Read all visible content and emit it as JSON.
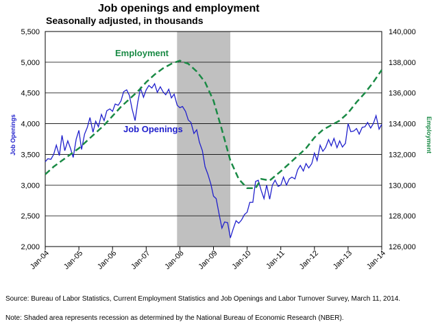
{
  "chart_data": {
    "type": "line",
    "title": "Job openings and employment",
    "subtitle": "Seasonally adjusted, in thousands",
    "xlabel": "",
    "x_ticks": [
      "Jan-04",
      "Jan-05",
      "Jan-06",
      "Jan-07",
      "Jan-08",
      "Jan-09",
      "Jan-10",
      "Jan-11",
      "Jan-12",
      "Jan-13",
      "Jan-14"
    ],
    "y_left": {
      "label": "Job Openings",
      "range": [
        2000,
        5500
      ],
      "ticks": [
        "2,000",
        "2,500",
        "3,000",
        "3,500",
        "4,000",
        "4,500",
        "5,000",
        "5,500"
      ]
    },
    "y_right": {
      "label": "Employment",
      "range": [
        126000,
        140000
      ],
      "ticks": [
        "126,000",
        "128,000",
        "130,000",
        "132,000",
        "134,000",
        "136,000",
        "138,000",
        "140,000"
      ]
    },
    "grid": true,
    "recession": {
      "start": 2007.917,
      "end": 2009.5,
      "color": "#c0c0c0"
    },
    "series": [
      {
        "name": "Job Openings",
        "axis": "left",
        "color": "#1f1fcc",
        "style": "solid",
        "points": [
          [
            2004.0,
            3380
          ],
          [
            2004.08,
            3430
          ],
          [
            2004.17,
            3420
          ],
          [
            2004.25,
            3500
          ],
          [
            2004.33,
            3650
          ],
          [
            2004.42,
            3480
          ],
          [
            2004.5,
            3810
          ],
          [
            2004.58,
            3560
          ],
          [
            2004.67,
            3720
          ],
          [
            2004.75,
            3600
          ],
          [
            2004.83,
            3450
          ],
          [
            2004.92,
            3750
          ],
          [
            2005.0,
            3890
          ],
          [
            2005.08,
            3580
          ],
          [
            2005.17,
            3830
          ],
          [
            2005.25,
            3940
          ],
          [
            2005.33,
            4100
          ],
          [
            2005.42,
            3860
          ],
          [
            2005.5,
            4040
          ],
          [
            2005.58,
            3950
          ],
          [
            2005.67,
            4150
          ],
          [
            2005.75,
            4050
          ],
          [
            2005.83,
            4210
          ],
          [
            2005.92,
            4240
          ],
          [
            2006.0,
            4200
          ],
          [
            2006.08,
            4320
          ],
          [
            2006.17,
            4300
          ],
          [
            2006.25,
            4370
          ],
          [
            2006.33,
            4520
          ],
          [
            2006.42,
            4550
          ],
          [
            2006.5,
            4460
          ],
          [
            2006.58,
            4240
          ],
          [
            2006.67,
            4050
          ],
          [
            2006.75,
            4350
          ],
          [
            2006.83,
            4580
          ],
          [
            2006.92,
            4430
          ],
          [
            2007.0,
            4550
          ],
          [
            2007.08,
            4620
          ],
          [
            2007.17,
            4580
          ],
          [
            2007.25,
            4650
          ],
          [
            2007.33,
            4510
          ],
          [
            2007.42,
            4600
          ],
          [
            2007.5,
            4520
          ],
          [
            2007.58,
            4470
          ],
          [
            2007.67,
            4560
          ],
          [
            2007.75,
            4420
          ],
          [
            2007.83,
            4480
          ],
          [
            2007.92,
            4300
          ],
          [
            2008.0,
            4260
          ],
          [
            2008.08,
            4280
          ],
          [
            2008.17,
            4200
          ],
          [
            2008.25,
            4060
          ],
          [
            2008.33,
            4020
          ],
          [
            2008.42,
            3840
          ],
          [
            2008.5,
            3900
          ],
          [
            2008.58,
            3700
          ],
          [
            2008.67,
            3560
          ],
          [
            2008.75,
            3300
          ],
          [
            2008.83,
            3180
          ],
          [
            2008.92,
            3020
          ],
          [
            2009.0,
            2820
          ],
          [
            2009.08,
            2780
          ],
          [
            2009.17,
            2520
          ],
          [
            2009.25,
            2300
          ],
          [
            2009.33,
            2400
          ],
          [
            2009.42,
            2390
          ],
          [
            2009.5,
            2140
          ],
          [
            2009.58,
            2280
          ],
          [
            2009.67,
            2420
          ],
          [
            2009.75,
            2380
          ],
          [
            2009.83,
            2430
          ],
          [
            2009.92,
            2520
          ],
          [
            2010.0,
            2560
          ],
          [
            2010.08,
            2720
          ],
          [
            2010.17,
            2720
          ],
          [
            2010.25,
            3060
          ],
          [
            2010.33,
            3080
          ],
          [
            2010.42,
            2910
          ],
          [
            2010.5,
            2780
          ],
          [
            2010.58,
            3000
          ],
          [
            2010.67,
            2770
          ],
          [
            2010.75,
            3000
          ],
          [
            2010.83,
            3080
          ],
          [
            2010.92,
            2980
          ],
          [
            2011.0,
            3000
          ],
          [
            2011.08,
            3130
          ],
          [
            2011.17,
            3000
          ],
          [
            2011.25,
            3100
          ],
          [
            2011.33,
            3130
          ],
          [
            2011.42,
            3100
          ],
          [
            2011.5,
            3250
          ],
          [
            2011.58,
            3320
          ],
          [
            2011.67,
            3230
          ],
          [
            2011.75,
            3350
          ],
          [
            2011.83,
            3280
          ],
          [
            2011.92,
            3350
          ],
          [
            2012.0,
            3520
          ],
          [
            2012.08,
            3400
          ],
          [
            2012.17,
            3650
          ],
          [
            2012.25,
            3550
          ],
          [
            2012.33,
            3610
          ],
          [
            2012.42,
            3740
          ],
          [
            2012.5,
            3640
          ],
          [
            2012.58,
            3760
          ],
          [
            2012.67,
            3610
          ],
          [
            2012.75,
            3720
          ],
          [
            2012.83,
            3620
          ],
          [
            2012.92,
            3680
          ],
          [
            2013.0,
            4000
          ],
          [
            2013.08,
            3870
          ],
          [
            2013.17,
            3880
          ],
          [
            2013.25,
            3920
          ],
          [
            2013.33,
            3830
          ],
          [
            2013.42,
            3940
          ],
          [
            2013.5,
            3950
          ],
          [
            2013.58,
            4020
          ],
          [
            2013.67,
            3930
          ],
          [
            2013.75,
            4000
          ],
          [
            2013.83,
            4130
          ],
          [
            2013.92,
            3910
          ],
          [
            2014.0,
            3990
          ]
        ]
      },
      {
        "name": "Employment",
        "axis": "right",
        "color": "#1a8a45",
        "style": "dashed",
        "points": [
          [
            2004.0,
            130700
          ],
          [
            2004.25,
            131200
          ],
          [
            2004.5,
            131600
          ],
          [
            2004.75,
            132000
          ],
          [
            2005.0,
            132400
          ],
          [
            2005.25,
            132900
          ],
          [
            2005.5,
            133400
          ],
          [
            2005.75,
            133900
          ],
          [
            2006.0,
            134500
          ],
          [
            2006.25,
            135100
          ],
          [
            2006.5,
            135600
          ],
          [
            2006.75,
            136100
          ],
          [
            2007.0,
            136700
          ],
          [
            2007.25,
            137200
          ],
          [
            2007.5,
            137600
          ],
          [
            2007.75,
            137900
          ],
          [
            2008.0,
            138100
          ],
          [
            2008.25,
            137900
          ],
          [
            2008.5,
            137400
          ],
          [
            2008.75,
            136700
          ],
          [
            2009.0,
            135500
          ],
          [
            2009.25,
            133600
          ],
          [
            2009.5,
            131600
          ],
          [
            2009.75,
            130400
          ],
          [
            2010.0,
            129800
          ],
          [
            2010.25,
            129800
          ],
          [
            2010.42,
            130400
          ],
          [
            2010.67,
            130300
          ],
          [
            2011.0,
            130900
          ],
          [
            2011.25,
            131400
          ],
          [
            2011.5,
            131900
          ],
          [
            2011.75,
            132400
          ],
          [
            2012.0,
            133100
          ],
          [
            2012.25,
            133600
          ],
          [
            2012.5,
            133900
          ],
          [
            2012.75,
            134200
          ],
          [
            2013.0,
            134700
          ],
          [
            2013.25,
            135400
          ],
          [
            2013.5,
            136000
          ],
          [
            2013.75,
            136700
          ],
          [
            2014.0,
            137500
          ]
        ]
      }
    ],
    "annotations": [
      {
        "text": "Employment",
        "series": "Employment"
      },
      {
        "text": "Job Openings",
        "series": "Job Openings"
      }
    ]
  },
  "footnotes": {
    "source": "Source: Bureau of Labor Statistics, Current Employment Statistics and Job Openings and Labor Turnover Survey, March 11, 2014.",
    "note": "Note: Shaded area represents recession as determined by the National Bureau of Economic Research (NBER)."
  }
}
